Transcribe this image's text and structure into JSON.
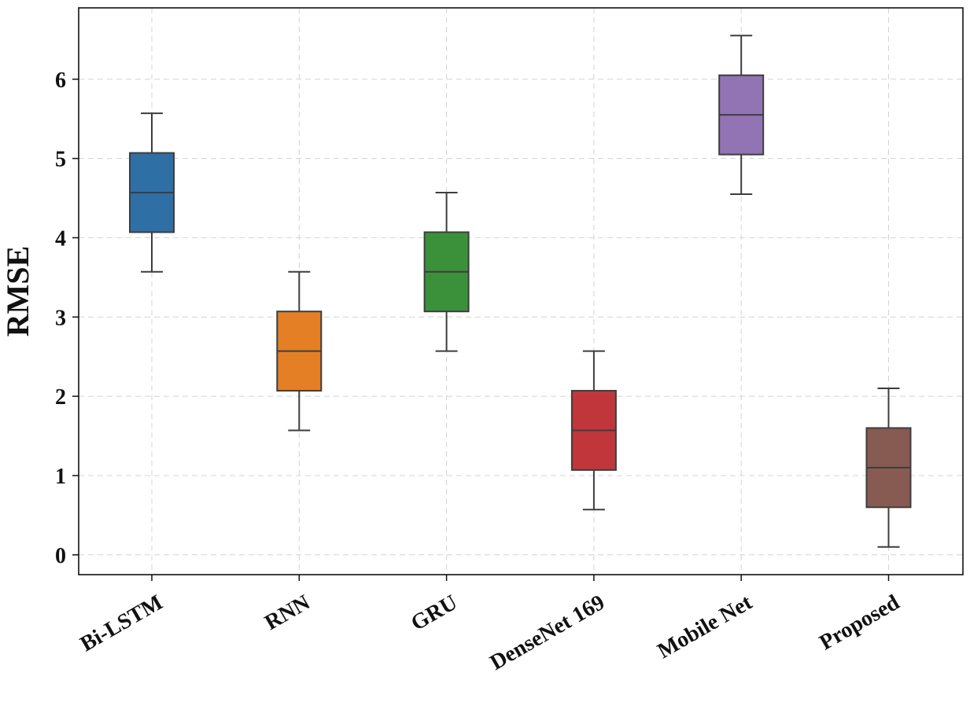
{
  "chart_data": {
    "type": "box",
    "title": "",
    "xlabel": "",
    "ylabel": "RMSE",
    "ylim": [
      -0.25,
      6.9
    ],
    "yticks": [
      0,
      1,
      2,
      3,
      4,
      5,
      6
    ],
    "ytick_labels": [
      "0",
      "1",
      "2",
      "3",
      "4",
      "5",
      "6"
    ],
    "grid": true,
    "categories": [
      "Bi-LSTM",
      "RNN",
      "GRU",
      "DenseNet 169",
      "Mobile Net",
      "Proposed"
    ],
    "boxes": [
      {
        "name": "Bi-LSTM",
        "whisker_low": 3.57,
        "q1": 4.07,
        "median": 4.57,
        "q3": 5.07,
        "whisker_high": 5.57,
        "color": "#2e6fa6"
      },
      {
        "name": "RNN",
        "whisker_low": 1.57,
        "q1": 2.07,
        "median": 2.57,
        "q3": 3.07,
        "whisker_high": 3.57,
        "color": "#e47f25"
      },
      {
        "name": "GRU",
        "whisker_low": 2.57,
        "q1": 3.07,
        "median": 3.57,
        "q3": 4.07,
        "whisker_high": 4.57,
        "color": "#3b913a"
      },
      {
        "name": "DenseNet 169",
        "whisker_low": 0.57,
        "q1": 1.07,
        "median": 1.57,
        "q3": 2.07,
        "whisker_high": 2.57,
        "color": "#c1363a"
      },
      {
        "name": "Mobile Net",
        "whisker_low": 4.55,
        "q1": 5.05,
        "median": 5.55,
        "q3": 6.05,
        "whisker_high": 6.55,
        "color": "#9273b4"
      },
      {
        "name": "Proposed",
        "whisker_low": 0.1,
        "q1": 0.6,
        "median": 1.1,
        "q3": 1.6,
        "whisker_high": 2.1,
        "color": "#875b52"
      }
    ]
  }
}
